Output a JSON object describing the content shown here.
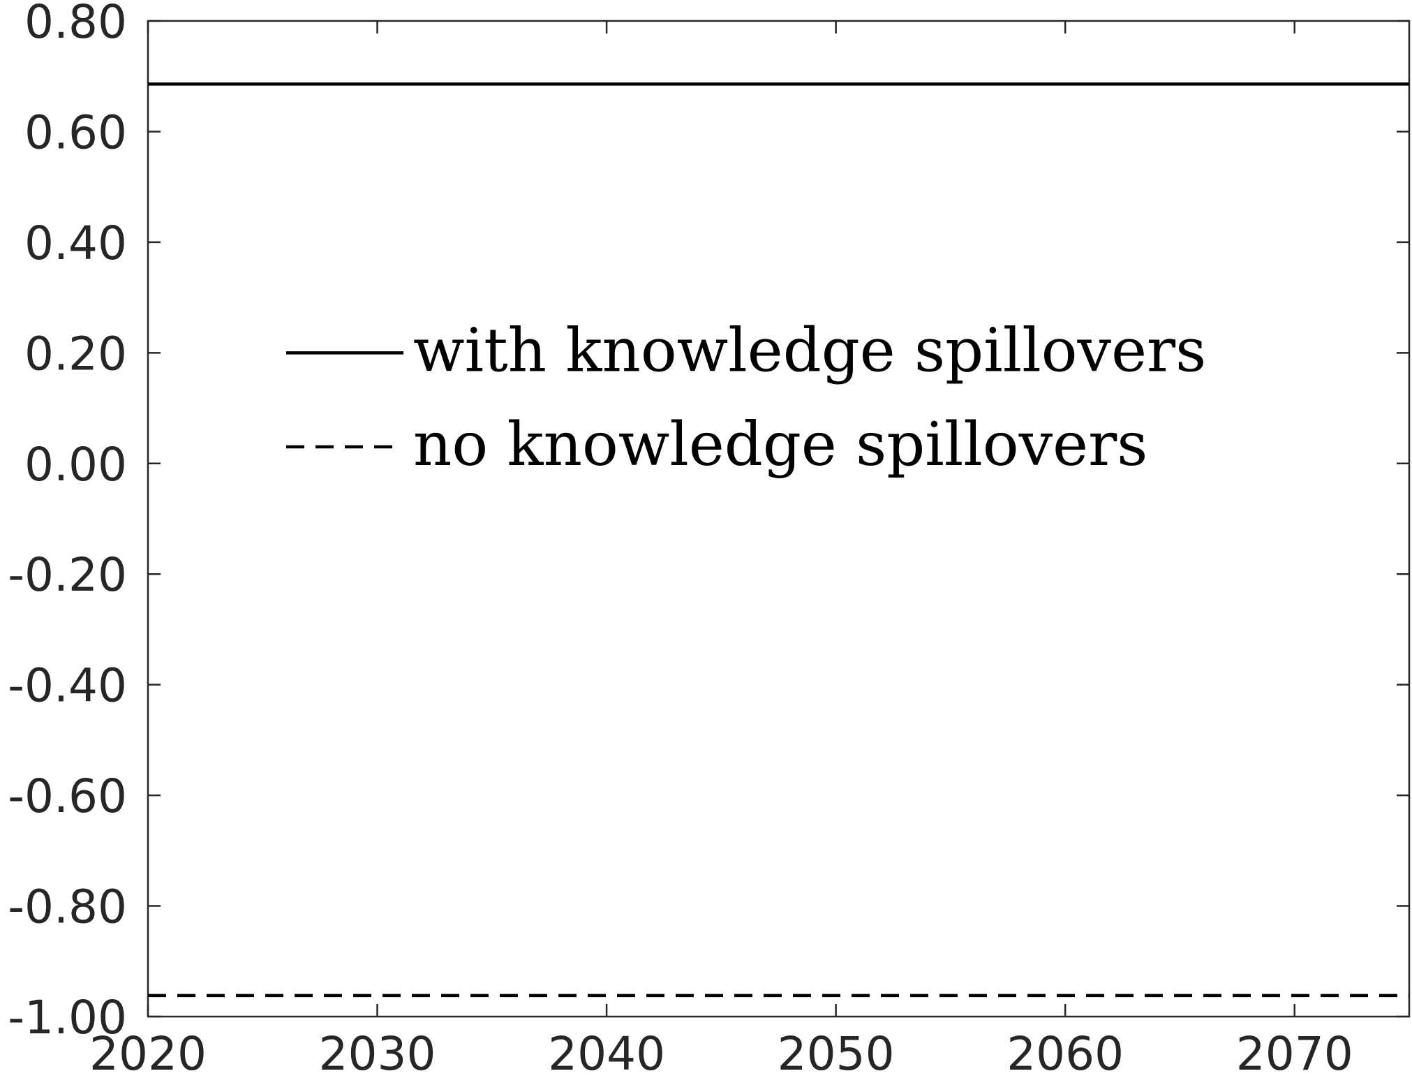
{
  "chart_data": {
    "type": "line",
    "title": "",
    "xlabel": "",
    "ylabel": "",
    "xlim": [
      2020,
      2075
    ],
    "ylim": [
      -1.0,
      0.8
    ],
    "x_ticks": [
      2020,
      2030,
      2040,
      2050,
      2060,
      2070
    ],
    "x_tick_labels": [
      "2020",
      "2030",
      "2040",
      "2050",
      "2060",
      "2070"
    ],
    "y_ticks": [
      0.8,
      0.6,
      0.4,
      0.2,
      0.0,
      -0.2,
      -0.4,
      -0.6,
      -0.8,
      -1.0
    ],
    "y_tick_labels": [
      "0.80",
      "0.60",
      "0.40",
      "0.20",
      "0.00",
      "-0.20",
      "-0.40",
      "-0.60",
      "-0.80",
      "-1.00"
    ],
    "grid": false,
    "legend_position": "center-left",
    "series": [
      {
        "name": "with knowledge spillovers",
        "style": "solid",
        "color": "#000000",
        "x": [
          2020,
          2075
        ],
        "y": [
          0.686,
          0.686
        ]
      },
      {
        "name": "no knowledge spillovers",
        "style": "dashed",
        "color": "#000000",
        "x": [
          2020,
          2075
        ],
        "y": [
          -0.962,
          -0.962
        ]
      }
    ]
  }
}
